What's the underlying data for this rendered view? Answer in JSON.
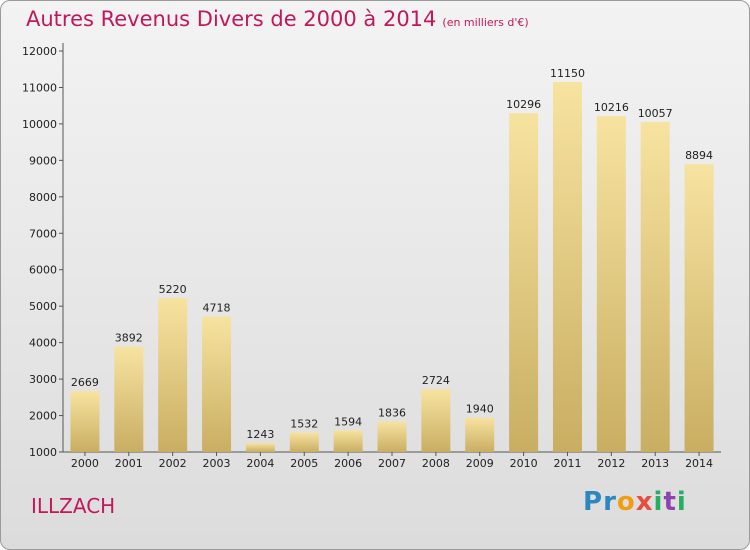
{
  "header": {
    "title": "Autres Revenus Divers de 2000 à 2014",
    "subtitle": "(en milliers d'€)"
  },
  "footer": {
    "city": "ILLZACH",
    "logo_letters": [
      {
        "ch": "P",
        "color": "#2e86c1"
      },
      {
        "ch": "r",
        "color": "#2e86c1"
      },
      {
        "ch": "o",
        "color": "#f39c12"
      },
      {
        "ch": "x",
        "color": "#e74c3c"
      },
      {
        "ch": "i",
        "color": "#27ae60"
      },
      {
        "ch": "t",
        "color": "#8e44ad"
      },
      {
        "ch": "i",
        "color": "#27ae60"
      }
    ]
  },
  "colors": {
    "bar_top": "#f7e3a0",
    "bar_bottom": "#c9ae62",
    "title": "#c2185b"
  },
  "chart_data": {
    "type": "bar",
    "categories": [
      "2000",
      "2001",
      "2002",
      "2003",
      "2004",
      "2005",
      "2006",
      "2007",
      "2008",
      "2009",
      "2010",
      "2011",
      "2012",
      "2013",
      "2014"
    ],
    "values": [
      2669,
      3892,
      5220,
      4718,
      1243,
      1532,
      1594,
      1836,
      2724,
      1940,
      10296,
      11150,
      10216,
      10057,
      8894
    ],
    "yticks": [
      1000,
      2000,
      3000,
      4000,
      5000,
      6000,
      7000,
      8000,
      9000,
      10000,
      11000,
      12000
    ],
    "ylim": [
      1000,
      12000
    ],
    "title": "Autres Revenus Divers de 2000 à 2014",
    "xlabel": "",
    "ylabel": "",
    "grid": false
  }
}
